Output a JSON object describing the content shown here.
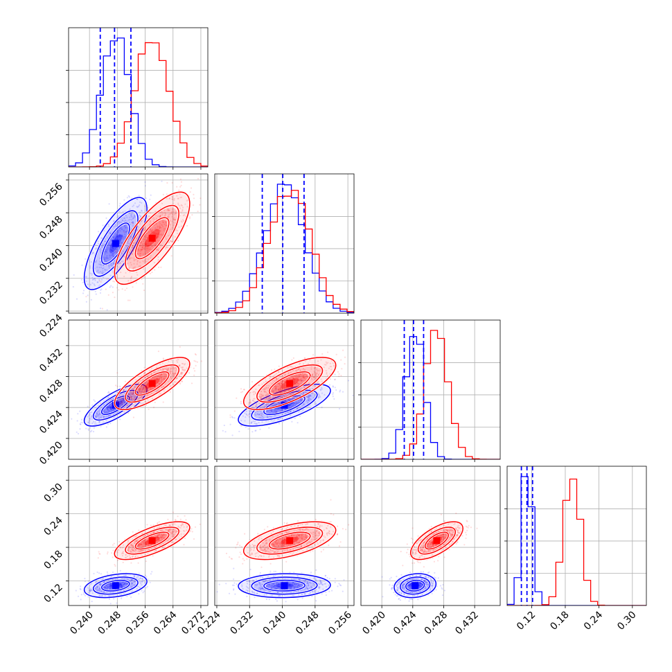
{
  "chart_data": {
    "type": "corner",
    "grid": true,
    "parameters": [
      {
        "range": [
          0.234,
          0.274
        ],
        "ticks": [
          "0.240",
          "0.248",
          "0.256",
          "0.264",
          "0.272"
        ]
      },
      {
        "range": [
          0.2235,
          0.2575
        ],
        "ticks": [
          "0.224",
          "0.232",
          "0.240",
          "0.248",
          "0.256"
        ]
      },
      {
        "range": [
          0.4173,
          0.4353
        ],
        "ticks": [
          "0.420",
          "0.424",
          "0.428",
          "0.432"
        ]
      },
      {
        "range": [
          0.076,
          0.325
        ],
        "ticks": [
          "0.12",
          "0.18",
          "0.24",
          "0.30"
        ]
      }
    ],
    "series": [
      {
        "color": "#0000ff",
        "means": [
          0.2475,
          0.2405,
          0.4243,
          0.1115
        ],
        "sigmas": [
          0.004,
          0.005,
          0.0012,
          0.0095
        ],
        "correlations": [
          [
            0,
            1,
            0.75
          ],
          [
            0,
            2,
            0.75
          ],
          [
            0,
            3,
            0.35
          ],
          [
            1,
            2,
            0.7
          ],
          [
            1,
            3,
            0.05
          ],
          [
            2,
            3,
            0.15
          ]
        ],
        "quantile_lines": [
          [
            0.2431,
            0.2472,
            0.2519
          ],
          [
            0.2351,
            0.2401,
            0.2453
          ],
          [
            0.4229,
            0.4241,
            0.4254
          ],
          [
            0.1015,
            0.1115,
            0.1215
          ]
        ]
      },
      {
        "color": "#ff0000",
        "means": [
          0.258,
          0.2418,
          0.4271,
          0.192
        ],
        "sigmas": [
          0.0048,
          0.005,
          0.0015,
          0.015
        ],
        "correlations": [
          [
            0,
            1,
            0.75
          ],
          [
            0,
            2,
            0.75
          ],
          [
            0,
            3,
            0.7
          ],
          [
            1,
            2,
            0.7
          ],
          [
            1,
            3,
            0.55
          ],
          [
            2,
            3,
            0.65
          ]
        ]
      }
    ],
    "quantile_line_color": "#0000ff",
    "histogram_type": "step",
    "contour_levels": [
      0.393,
      0.865,
      0.989
    ],
    "diagonal_peaks": [
      {
        "blue": 0.2475,
        "red": 0.258
      },
      {
        "blue": 0.2405,
        "red": 0.2418
      },
      {
        "blue": 0.4243,
        "red": 0.4271
      },
      {
        "blue": 0.1115,
        "red": 0.192
      }
    ]
  }
}
